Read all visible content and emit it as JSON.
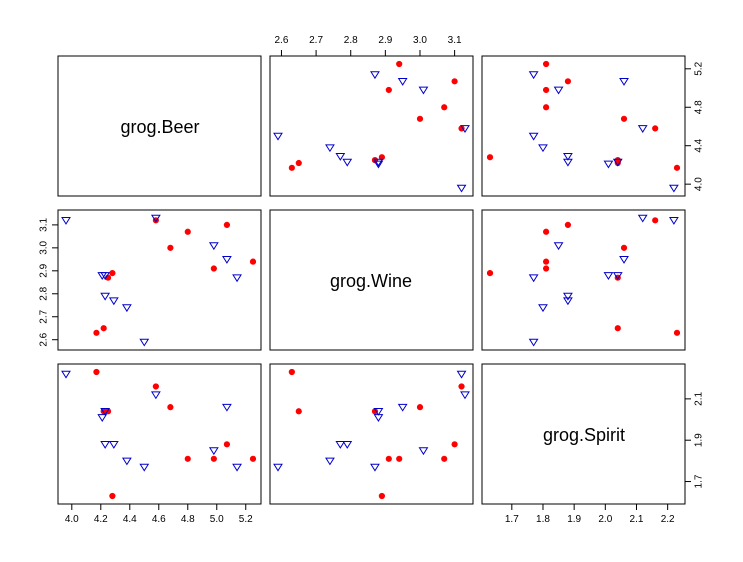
{
  "chart_data": {
    "type": "scatter",
    "variables": [
      "grog.Beer",
      "grog.Wine",
      "grog.Spirit"
    ],
    "ranges": {
      "grog.Beer": [
        3.96,
        5.25
      ],
      "grog.Wine": [
        2.59,
        3.13
      ],
      "grog.Spirit": [
        1.63,
        2.23
      ]
    },
    "ticks": {
      "grog.Beer": [
        4.0,
        4.2,
        4.4,
        4.6,
        4.8,
        5.0,
        5.2
      ],
      "grog.Beer_right": [
        4.0,
        4.4,
        4.8,
        5.2
      ],
      "grog.Wine": [
        2.6,
        2.7,
        2.8,
        2.9,
        3.0,
        3.1
      ],
      "grog.Spirit": [
        1.7,
        1.8,
        1.9,
        2.0,
        2.1,
        2.2
      ],
      "grog.Spirit_right": [
        1.7,
        1.9,
        2.1
      ]
    },
    "tick_labels": {
      "beer_bottom": [
        "4.0",
        "4.2",
        "4.4",
        "4.6",
        "4.8",
        "5.0",
        "5.2"
      ],
      "wine_top": [
        "2.6",
        "2.7",
        "2.8",
        "2.9",
        "3.0",
        "3.1"
      ],
      "wine_left": [
        "2.6",
        "2.7",
        "2.8",
        "2.9",
        "3.0",
        "3.1"
      ],
      "beer_right": [
        "4.0",
        "4.4",
        "4.8",
        "5.2"
      ],
      "spirit_bottom": [
        "1.7",
        "1.8",
        "1.9",
        "2.0",
        "2.1",
        "2.2"
      ],
      "spirit_right": [
        "1.7",
        "1.9",
        "2.1"
      ]
    },
    "series": [
      {
        "marker": "filled-circle",
        "color": "#ff0000",
        "points": [
          {
            "beer": 4.17,
            "wine": 2.63,
            "spirit": 2.23
          },
          {
            "beer": 4.22,
            "wine": 2.65,
            "spirit": 2.04
          },
          {
            "beer": 4.25,
            "wine": 2.87,
            "spirit": 2.04
          },
          {
            "beer": 4.28,
            "wine": 2.89,
            "spirit": 1.63
          },
          {
            "beer": 4.58,
            "wine": 3.12,
            "spirit": 2.16
          },
          {
            "beer": 4.68,
            "wine": 3.0,
            "spirit": 2.06
          },
          {
            "beer": 4.8,
            "wine": 3.07,
            "spirit": 1.81
          },
          {
            "beer": 4.98,
            "wine": 2.91,
            "spirit": 1.81
          },
          {
            "beer": 5.07,
            "wine": 3.1,
            "spirit": 1.88
          },
          {
            "beer": 5.25,
            "wine": 2.94,
            "spirit": 1.81
          }
        ]
      },
      {
        "marker": "open-triangle-down",
        "color": "#0000cc",
        "points": [
          {
            "beer": 3.96,
            "wine": 3.12,
            "spirit": 2.22
          },
          {
            "beer": 4.21,
            "wine": 2.88,
            "spirit": 2.01
          },
          {
            "beer": 4.23,
            "wine": 2.79,
            "spirit": 1.88
          },
          {
            "beer": 4.38,
            "wine": 2.74,
            "spirit": 1.8
          },
          {
            "beer": 4.5,
            "wine": 2.59,
            "spirit": 1.77
          },
          {
            "beer": 4.58,
            "wine": 3.13,
            "spirit": 2.12
          },
          {
            "beer": 4.98,
            "wine": 3.01,
            "spirit": 1.85
          },
          {
            "beer": 5.07,
            "wine": 2.95,
            "spirit": 2.06
          },
          {
            "beer": 5.14,
            "wine": 2.87,
            "spirit": 1.77
          },
          {
            "beer": 4.29,
            "wine": 2.77,
            "spirit": 1.88
          },
          {
            "beer": 4.23,
            "wine": 2.88,
            "spirit": 2.04
          }
        ]
      }
    ]
  }
}
